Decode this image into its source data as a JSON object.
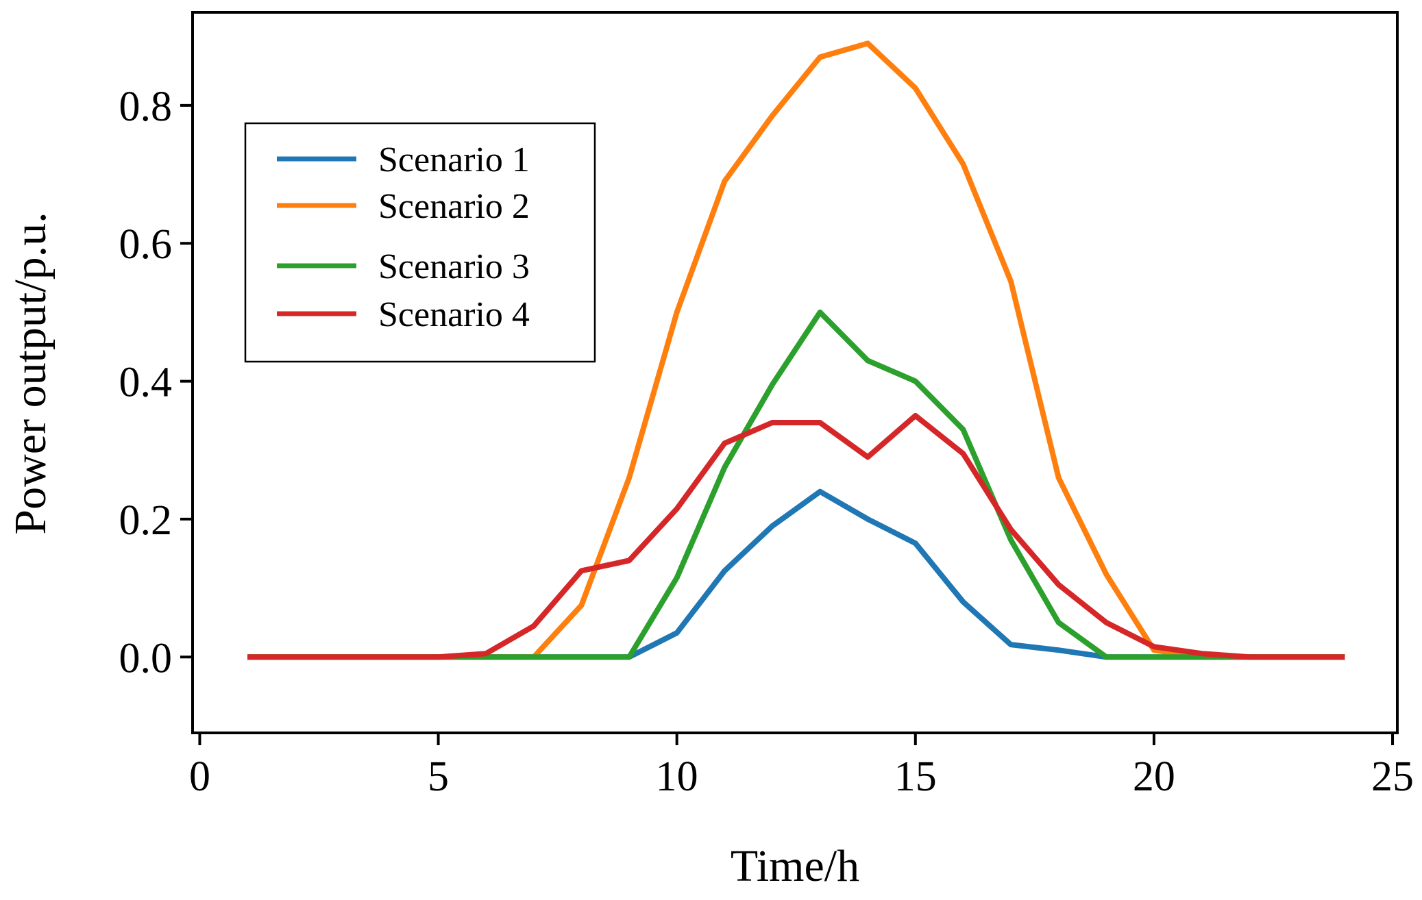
{
  "chart_data": {
    "type": "line",
    "title": "",
    "xlabel": "Time/h",
    "ylabel": "Power output/p.u.",
    "xlim": [
      -0.15,
      25.1
    ],
    "ylim": [
      -0.11,
      0.935
    ],
    "xticks": [
      0,
      5,
      10,
      15,
      20,
      25
    ],
    "xtick_labels": [
      "0",
      "5",
      "10",
      "15",
      "20",
      "25"
    ],
    "yticks": [
      0.0,
      0.2,
      0.4,
      0.6,
      0.8
    ],
    "ytick_labels": [
      "0.0",
      "0.2",
      "0.4",
      "0.6",
      "0.8"
    ],
    "grid": false,
    "legend_position": "upper-left",
    "x": [
      1,
      2,
      3,
      4,
      5,
      6,
      7,
      8,
      9,
      10,
      11,
      12,
      13,
      14,
      15,
      16,
      17,
      18,
      19,
      20,
      21,
      22,
      23,
      24
    ],
    "series": [
      {
        "name": "Scenario 1",
        "color": "#1f77b4",
        "values": [
          0,
          0,
          0,
          0,
          0,
          0,
          0,
          0,
          0,
          0.035,
          0.125,
          0.19,
          0.24,
          0.2,
          0.165,
          0.08,
          0.018,
          0.01,
          0,
          0,
          0,
          0,
          0,
          0
        ]
      },
      {
        "name": "Scenario 2",
        "color": "#ff7f0e",
        "values": [
          0,
          0,
          0,
          0,
          0,
          0,
          0,
          0.075,
          0.26,
          0.5,
          0.69,
          0.785,
          0.87,
          0.89,
          0.825,
          0.715,
          0.545,
          0.26,
          0.12,
          0.01,
          0,
          0,
          0,
          0
        ]
      },
      {
        "name": "Scenario 3",
        "color": "#2ca02c",
        "values": [
          0,
          0,
          0,
          0,
          0,
          0,
          0,
          0,
          0,
          0.115,
          0.275,
          0.395,
          0.5,
          0.43,
          0.4,
          0.33,
          0.17,
          0.05,
          0,
          0,
          0,
          0,
          0,
          0
        ]
      },
      {
        "name": "Scenario 4",
        "color": "#d62728",
        "values": [
          0,
          0,
          0,
          0,
          0,
          0.005,
          0.045,
          0.125,
          0.14,
          0.215,
          0.31,
          0.34,
          0.34,
          0.29,
          0.35,
          0.295,
          0.185,
          0.105,
          0.05,
          0.015,
          0.005,
          0,
          0,
          0
        ]
      }
    ]
  }
}
